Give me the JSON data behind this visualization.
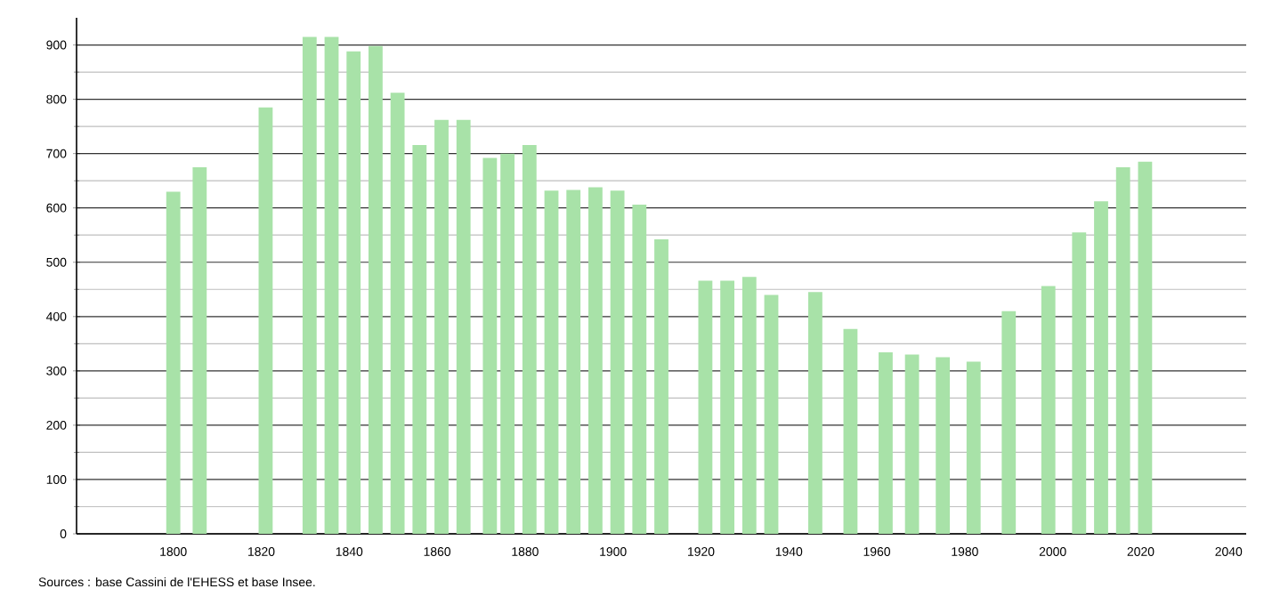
{
  "chart_data": {
    "type": "bar",
    "x": [
      1800,
      1806,
      1821,
      1831,
      1836,
      1841,
      1846,
      1851,
      1856,
      1861,
      1866,
      1872,
      1876,
      1881,
      1886,
      1891,
      1896,
      1901,
      1906,
      1911,
      1921,
      1926,
      1931,
      1936,
      1946,
      1954,
      1962,
      1968,
      1975,
      1982,
      1990,
      1999,
      2006,
      2011,
      2016,
      2021
    ],
    "values": [
      630,
      675,
      785,
      915,
      915,
      888,
      898,
      812,
      716,
      762,
      762,
      692,
      700,
      716,
      632,
      633,
      638,
      632,
      606,
      542,
      466,
      466,
      473,
      440,
      445,
      377,
      334,
      330,
      325,
      317,
      410,
      456,
      555,
      612,
      675,
      685
    ],
    "color": "#a8e2a8",
    "xlim": [
      1778,
      2044
    ],
    "ylim": [
      0,
      950
    ],
    "xticks": [
      1800,
      1820,
      1840,
      1860,
      1880,
      1900,
      1920,
      1940,
      1960,
      1980,
      2000,
      2020,
      2040
    ],
    "yticks": [
      0,
      100,
      200,
      300,
      400,
      500,
      600,
      700,
      800,
      900
    ],
    "grid": "y",
    "annotations": [
      "Sources : base Cassini de l'EHESS et base Insee."
    ]
  }
}
